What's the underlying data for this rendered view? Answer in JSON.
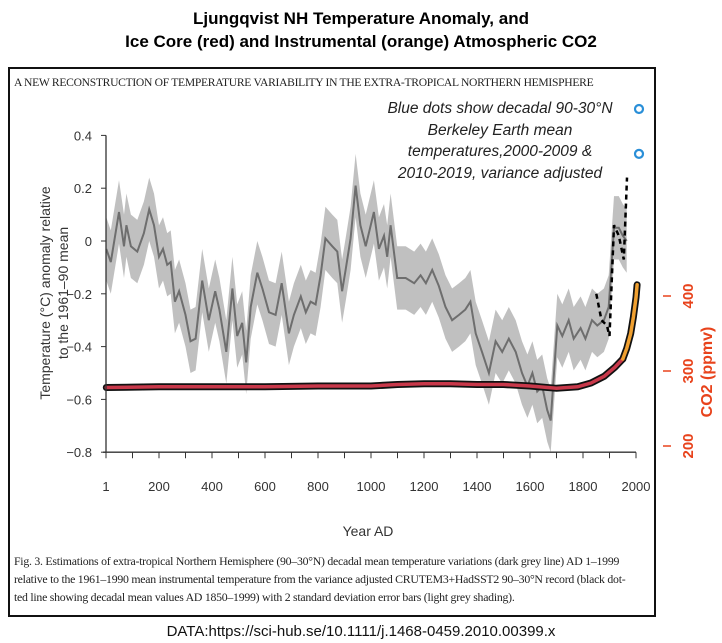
{
  "title_lines": [
    "Ljungqvist NH Temperature Anomaly, and",
    "Ice Core (red) and Instrumental (orange) Atmospheric CO2"
  ],
  "figure_header": "A NEW RECONSTRUCTION OF TEMPERATURE VARIABILITY IN THE EXTRA-TROPICAL NORTHERN HEMISPHERE",
  "annotation_lines": [
    "Blue dots show decadal 90-30°N",
    "Berkeley Earth mean",
    "temperatures,2000-2009 &",
    "2010-2019, variance adjusted"
  ],
  "caption_lines": [
    "Fig. 3. Estimations of extra-tropical Northern Hemisphere (90–30°N) decadal mean temperature variations (dark grey line) AD 1–1999",
    "relative to the 1961–1990 mean instrumental temperature from the variance adjusted CRUTEM3+HadSST2 90–30°N record (black dot-",
    "ted line showing decadal mean values AD 1850–1999) with 2 standard deviation error bars (light grey shading)."
  ],
  "source": "DATA:https://sci-hub.se/10.1111/j.1468-0459.2010.00399.x",
  "chart_data": {
    "type": "line",
    "xlabel": "Year AD",
    "ylabel_lines": [
      "Temperature (°C) anomaly relative",
      "to the 1961–90 mean"
    ],
    "y2label": "CO2 (ppmv)",
    "xlim": [
      1,
      2000
    ],
    "ylim": [
      -0.8,
      0.4
    ],
    "y2lim": [
      200,
      400
    ],
    "x_ticks": [
      "1",
      "200",
      "400",
      "600",
      "800",
      "1000",
      "1200",
      "1400",
      "1600",
      "1800",
      "2000"
    ],
    "y_ticks": [
      "0.4",
      "0.2",
      "0",
      "−0.2",
      "−0.4",
      "−0.6",
      "−0.8"
    ],
    "y2_ticks": [
      "400",
      "300",
      "200"
    ],
    "grid": false,
    "colors": {
      "temperature": "#6e6e6e",
      "band": "#b9b9b9",
      "instrumental": "#000000",
      "co2_ice": "#c8384a",
      "co2_instr": "#f0a030",
      "berkeley": "#2a8fd8",
      "co2_axis": "#e8431c"
    },
    "series": [
      {
        "name": "dark grey line",
        "band_2sd": 0.12,
        "points": [
          [
            1,
            -0.03
          ],
          [
            18,
            -0.08
          ],
          [
            49,
            0.11
          ],
          [
            68,
            -0.02
          ],
          [
            77,
            0.06
          ],
          [
            94,
            -0.02
          ],
          [
            118,
            -0.04
          ],
          [
            143,
            0.03
          ],
          [
            163,
            0.12
          ],
          [
            181,
            0.06
          ],
          [
            200,
            -0.06
          ],
          [
            215,
            -0.03
          ],
          [
            231,
            -0.09
          ],
          [
            244,
            -0.08
          ],
          [
            260,
            -0.23
          ],
          [
            276,
            -0.19
          ],
          [
            300,
            -0.28
          ],
          [
            319,
            -0.38
          ],
          [
            338,
            -0.37
          ],
          [
            363,
            -0.15
          ],
          [
            388,
            -0.3
          ],
          [
            412,
            -0.19
          ],
          [
            428,
            -0.26
          ],
          [
            454,
            -0.42
          ],
          [
            477,
            -0.18
          ],
          [
            495,
            -0.36
          ],
          [
            514,
            -0.31
          ],
          [
            529,
            -0.46
          ],
          [
            546,
            -0.25
          ],
          [
            571,
            -0.12
          ],
          [
            590,
            -0.18
          ],
          [
            615,
            -0.27
          ],
          [
            640,
            -0.28
          ],
          [
            663,
            -0.16
          ],
          [
            690,
            -0.35
          ],
          [
            709,
            -0.28
          ],
          [
            735,
            -0.21
          ],
          [
            754,
            -0.27
          ],
          [
            772,
            -0.23
          ],
          [
            791,
            -0.24
          ],
          [
            810,
            -0.13
          ],
          [
            828,
            0.01
          ],
          [
            854,
            -0.02
          ],
          [
            873,
            -0.04
          ],
          [
            891,
            -0.19
          ],
          [
            904,
            -0.11
          ],
          [
            923,
            0.01
          ],
          [
            942,
            0.21
          ],
          [
            960,
            0.06
          ],
          [
            980,
            -0.02
          ],
          [
            1011,
            0.11
          ],
          [
            1030,
            -0.03
          ],
          [
            1049,
            0.02
          ],
          [
            1061,
            -0.06
          ],
          [
            1074,
            0.06
          ],
          [
            1099,
            -0.14
          ],
          [
            1131,
            -0.14
          ],
          [
            1163,
            -0.16
          ],
          [
            1187,
            -0.13
          ],
          [
            1207,
            -0.16
          ],
          [
            1231,
            -0.11
          ],
          [
            1256,
            -0.17
          ],
          [
            1281,
            -0.25
          ],
          [
            1306,
            -0.3
          ],
          [
            1332,
            -0.28
          ],
          [
            1356,
            -0.26
          ],
          [
            1375,
            -0.23
          ],
          [
            1395,
            -0.35
          ],
          [
            1419,
            -0.42
          ],
          [
            1445,
            -0.5
          ],
          [
            1470,
            -0.38
          ],
          [
            1495,
            -0.42
          ],
          [
            1520,
            -0.37
          ],
          [
            1546,
            -0.42
          ],
          [
            1570,
            -0.5
          ],
          [
            1590,
            -0.55
          ],
          [
            1609,
            -0.5
          ],
          [
            1627,
            -0.57
          ],
          [
            1646,
            -0.55
          ],
          [
            1665,
            -0.64
          ],
          [
            1678,
            -0.68
          ],
          [
            1703,
            -0.32
          ],
          [
            1722,
            -0.36
          ],
          [
            1746,
            -0.3
          ],
          [
            1765,
            -0.37
          ],
          [
            1791,
            -0.33
          ],
          [
            1809,
            -0.37
          ],
          [
            1834,
            -0.3
          ],
          [
            1854,
            -0.32
          ],
          [
            1879,
            -0.3
          ],
          [
            1897,
            -0.25
          ],
          [
            1917,
            0.05
          ],
          [
            1935,
            0.05
          ],
          [
            1950,
            0.02
          ],
          [
            1965,
            0.0
          ]
        ]
      },
      {
        "name": "black dotted line",
        "points": [
          [
            1850,
            -0.2
          ],
          [
            1870,
            -0.3
          ],
          [
            1890,
            -0.32
          ],
          [
            1900,
            -0.36
          ],
          [
            1917,
            0.06
          ],
          [
            1935,
            0.02
          ],
          [
            1954,
            -0.07
          ],
          [
            1966,
            0.24
          ]
        ]
      },
      {
        "name": "Blue dots",
        "points": [
          [
            "2000-2009",
            0.33
          ],
          [
            "2010-2019",
            0.5
          ]
        ]
      },
      {
        "name": "Ice Core (red)",
        "axis": "y2",
        "points": [
          [
            1,
            278
          ],
          [
            200,
            279
          ],
          [
            400,
            279
          ],
          [
            600,
            279
          ],
          [
            800,
            280
          ],
          [
            1000,
            280
          ],
          [
            1100,
            282
          ],
          [
            1200,
            283
          ],
          [
            1300,
            283
          ],
          [
            1400,
            282
          ],
          [
            1500,
            282
          ],
          [
            1600,
            280
          ],
          [
            1700,
            277
          ],
          [
            1780,
            279
          ],
          [
            1830,
            284
          ],
          [
            1880,
            293
          ],
          [
            1920,
            305
          ],
          [
            1950,
            316
          ]
        ]
      },
      {
        "name": "Instrumental (orange)",
        "axis": "y2",
        "points": [
          [
            1950,
            316
          ],
          [
            1965,
            330
          ],
          [
            1980,
            350
          ],
          [
            1990,
            372
          ],
          [
            2000,
            398
          ],
          [
            2004,
            415
          ]
        ]
      }
    ]
  }
}
